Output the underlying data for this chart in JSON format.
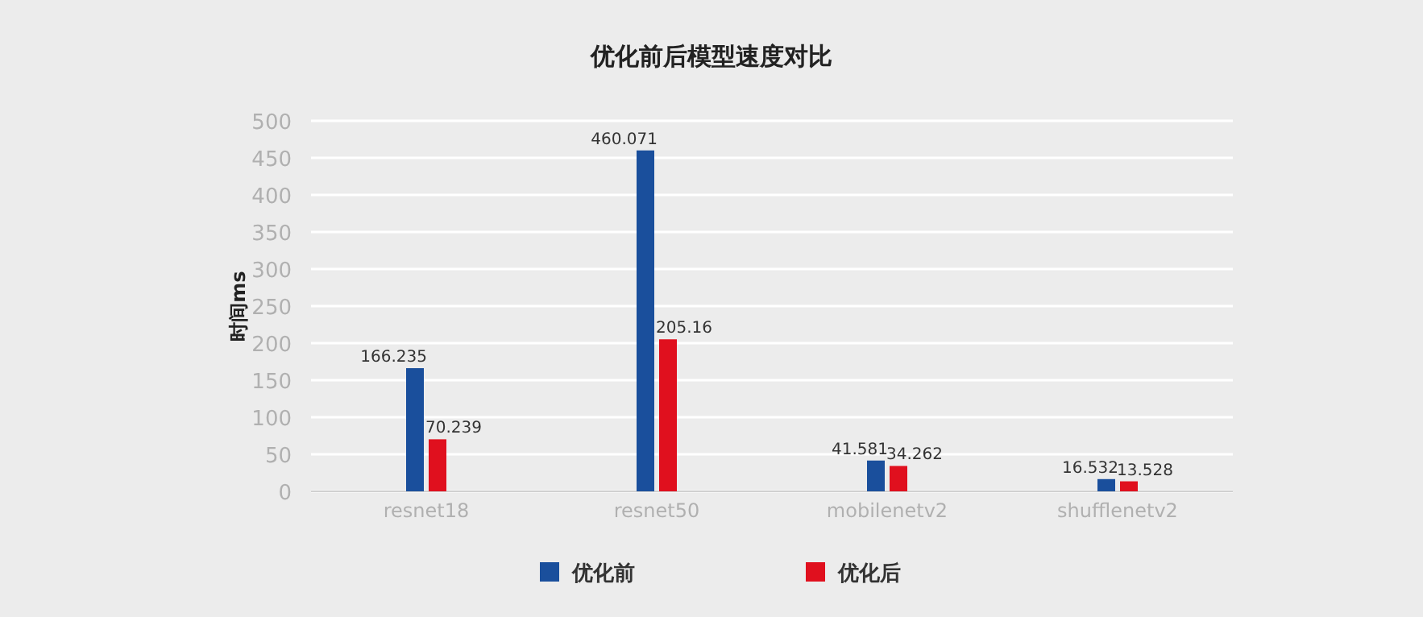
{
  "chart_data": {
    "type": "bar",
    "title": "优化前后模型速度对比",
    "ylabel": "时间ms",
    "categories": [
      "resnet18",
      "resnet50",
      "mobilenetv2",
      "shufflenetv2"
    ],
    "series": [
      {
        "name": "优化前",
        "color": "#1a4f9c",
        "values": [
          166.235,
          460.071,
          41.581,
          16.532
        ]
      },
      {
        "name": "优化后",
        "color": "#e0101e",
        "values": [
          70.239,
          205.16,
          34.262,
          13.528
        ]
      }
    ],
    "ylim": [
      0,
      500
    ],
    "yticks": [
      0,
      50,
      100,
      150,
      200,
      250,
      300,
      350,
      400,
      450,
      500
    ],
    "grid": "y",
    "legend": "bottom",
    "data_labels": true
  }
}
